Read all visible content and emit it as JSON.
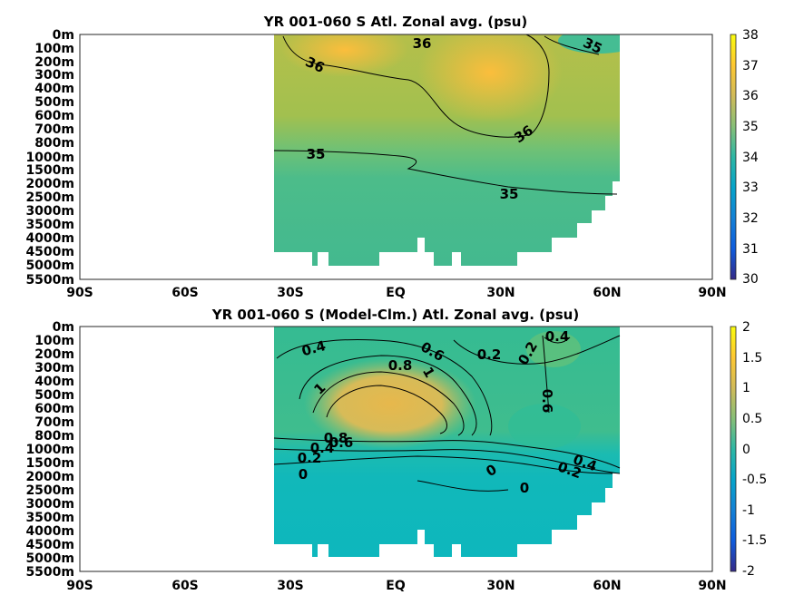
{
  "chart_data": [
    {
      "type": "heatmap",
      "title": "YR 001-060 S Atl. Zonal avg. (psu)",
      "xlabel": "",
      "ylabel": "",
      "x_ticks": [
        "90S",
        "60S",
        "30S",
        "EQ",
        "30N",
        "60N",
        "90N"
      ],
      "y_ticks": [
        "0m",
        "100m",
        "200m",
        "300m",
        "400m",
        "500m",
        "600m",
        "700m",
        "800m",
        "1000m",
        "1500m",
        "2000m",
        "2500m",
        "3000m",
        "3500m",
        "4000m",
        "4500m",
        "5000m",
        "5500m"
      ],
      "colorbar_ticks": [
        "30",
        "31",
        "32",
        "33",
        "34",
        "35",
        "36",
        "37",
        "38"
      ],
      "colorbar_range": [
        30,
        38
      ],
      "colormap": "parula",
      "contour_labels": [
        "36",
        "35",
        "36",
        "36",
        "35",
        "35"
      ],
      "data_extent_lat": [
        -35,
        63
      ],
      "values_summary": {
        "surface_subtropics": 37,
        "intermediate": 35.5,
        "deep": 34.9
      }
    },
    {
      "type": "heatmap",
      "title": "YR 001-060 S (Model-Clm.) Atl. Zonal avg. (psu)",
      "xlabel": "",
      "ylabel": "",
      "x_ticks": [
        "90S",
        "60S",
        "30S",
        "EQ",
        "30N",
        "60N",
        "90N"
      ],
      "y_ticks": [
        "0m",
        "100m",
        "200m",
        "300m",
        "400m",
        "500m",
        "600m",
        "700m",
        "800m",
        "1000m",
        "1500m",
        "2000m",
        "2500m",
        "3000m",
        "3500m",
        "4000m",
        "4500m",
        "5000m",
        "5500m"
      ],
      "colorbar_ticks": [
        "2",
        "1.5",
        "1",
        "0.5",
        "0",
        "-0.5",
        "-1",
        "-1.5",
        "-2"
      ],
      "colorbar_range": [
        -2,
        2
      ],
      "colormap": "parula",
      "contour_labels": [
        "0.4",
        "0.6",
        "0.2",
        "0.2",
        "0.4",
        "0.8",
        "1",
        "1",
        "0.6",
        "0.8",
        "0.4",
        "0.6",
        "0.2",
        "0.4",
        "0.2",
        "0",
        "0",
        "0"
      ],
      "data_extent_lat": [
        -35,
        63
      ],
      "values_summary": {
        "max_bias_south_intermediate": 1.1,
        "deep": -0.3
      }
    }
  ]
}
